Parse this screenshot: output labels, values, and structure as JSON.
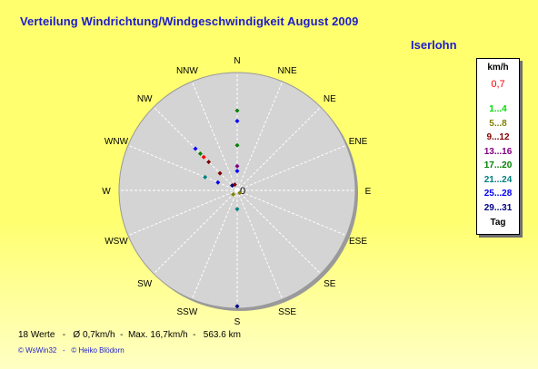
{
  "title": "Verteilung Windrichtung/Windgeschwindigkeit  August 2009",
  "location": "Iserlohn",
  "chart_data": {
    "type": "scatter",
    "subtype": "polar-wind-rose",
    "directions": [
      "N",
      "NNE",
      "NE",
      "ENE",
      "E",
      "ESE",
      "SE",
      "SSE",
      "S",
      "SSW",
      "SW",
      "WSW",
      "W",
      "WNW",
      "NW",
      "NNW"
    ],
    "center_label": "0",
    "radial_max_kmh": 17,
    "grid": true,
    "legend_position": "right",
    "points": [
      {
        "angle_deg": 0,
        "speed_kmh": 11.5,
        "color": "#008000"
      },
      {
        "angle_deg": 0,
        "speed_kmh": 10.0,
        "color": "#0000ff"
      },
      {
        "angle_deg": 0,
        "speed_kmh": 6.5,
        "color": "#008000"
      },
      {
        "angle_deg": 0,
        "speed_kmh": 3.5,
        "color": "#800080"
      },
      {
        "angle_deg": 0,
        "speed_kmh": 2.8,
        "color": "#0000ff"
      },
      {
        "angle_deg": 180,
        "speed_kmh": 2.7,
        "color": "#008080"
      },
      {
        "angle_deg": 180,
        "speed_kmh": 16.7,
        "color": "#000080"
      },
      {
        "angle_deg": 315,
        "speed_kmh": 8.5,
        "color": "#0000ff"
      },
      {
        "angle_deg": 315,
        "speed_kmh": 7.5,
        "color": "#008000"
      },
      {
        "angle_deg": 315,
        "speed_kmh": 6.8,
        "color": "#ff0000"
      },
      {
        "angle_deg": 315,
        "speed_kmh": 5.8,
        "color": "#800000"
      },
      {
        "angle_deg": 315,
        "speed_kmh": 3.5,
        "color": "#800000"
      },
      {
        "angle_deg": 315,
        "speed_kmh": 1.0,
        "color": "#000080"
      },
      {
        "angle_deg": 292.5,
        "speed_kmh": 5.0,
        "color": "#008080"
      },
      {
        "angle_deg": 292.5,
        "speed_kmh": 3.0,
        "color": "#0000ff"
      },
      {
        "angle_deg": 225,
        "speed_kmh": 0.8,
        "color": "#808000"
      },
      {
        "angle_deg": 337.5,
        "speed_kmh": 0.9,
        "color": "#800000"
      },
      {
        "angle_deg": 135,
        "speed_kmh": 0.5,
        "color": "#808000"
      }
    ]
  },
  "legend": {
    "header": "km/h",
    "calm_value": "0,7",
    "calm_color": "#ff0000",
    "items": [
      {
        "label": "1...4",
        "color": "#00dd00"
      },
      {
        "label": "5...8",
        "color": "#808000"
      },
      {
        "label": "9...12",
        "color": "#800000"
      },
      {
        "label": "13...16",
        "color": "#800080"
      },
      {
        "label": "17...20",
        "color": "#008000"
      },
      {
        "label": "21...24",
        "color": "#008080"
      },
      {
        "label": "25...28",
        "color": "#0000ff"
      },
      {
        "label": "29...31",
        "color": "#000080"
      }
    ],
    "footer": "Tag"
  },
  "footer_stats": "18 Werte   -   Ø 0,7km/h  -  Max. 16,7km/h  -   563.6 km",
  "credits": "© WsWin32   -   © Heiko Blödorn"
}
